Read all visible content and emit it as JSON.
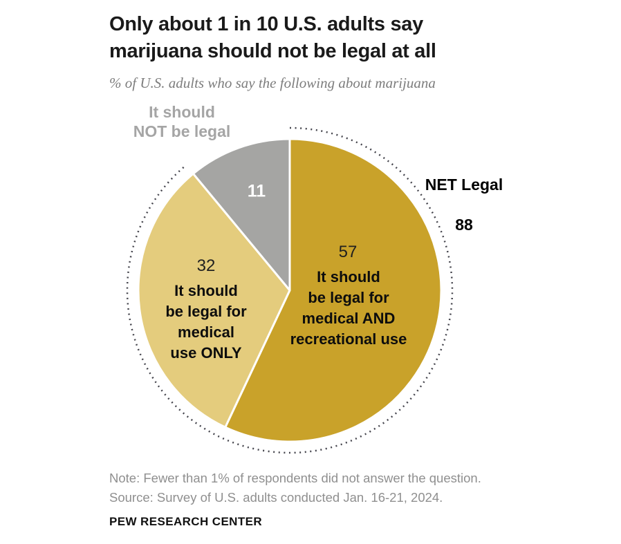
{
  "header": {
    "title": "Only about 1 in 10 U.S. adults say\nmarijuana should not be legal at all",
    "subtitle": "% of U.S. adults who say the following about marijuana"
  },
  "chart_data": {
    "type": "pie",
    "categories": [
      "It should be legal for medical AND recreational use",
      "It should be legal for medical use ONLY",
      "It should NOT be legal"
    ],
    "values": [
      57,
      32,
      11
    ],
    "colors": [
      "#C9A22A",
      "#E4CC7D",
      "#A5A5A3"
    ],
    "slice_ids": [
      "medical-and-recreational",
      "medical-only",
      "not-legal"
    ],
    "start_position": "12-oclock",
    "direction": "clockwise",
    "legend_position": "labels-inside-and-callouts",
    "annotations": {
      "net_label": "NET Legal",
      "net_value": "88",
      "net_slices": [
        0,
        1
      ],
      "net_arc_style": "dotted"
    }
  },
  "pie_labels": {
    "slice57_text": "It should\nbe legal for\nmedical AND\nrecreational use",
    "slice32_text": "It should\nbe legal for\nmedical\nuse ONLY",
    "slice11_callout": "It should\nNOT be legal"
  },
  "footer": {
    "note": "Note: Fewer than 1% of respondents did not answer the question.",
    "source": "Source: Survey of U.S. adults conducted Jan. 16-21, 2024.",
    "brand": "PEW RESEARCH CENTER"
  },
  "palette": {
    "dark_gold": "#C9A22A",
    "light_gold": "#E4CC7D",
    "gray_slice": "#A5A5A3",
    "dotted_arc": "#45454d",
    "title_text": "#1a1a1a",
    "muted_text": "#8f8f8f",
    "callout_gray_text": "#a5a5a5",
    "slice_divider": "#ffffff"
  }
}
